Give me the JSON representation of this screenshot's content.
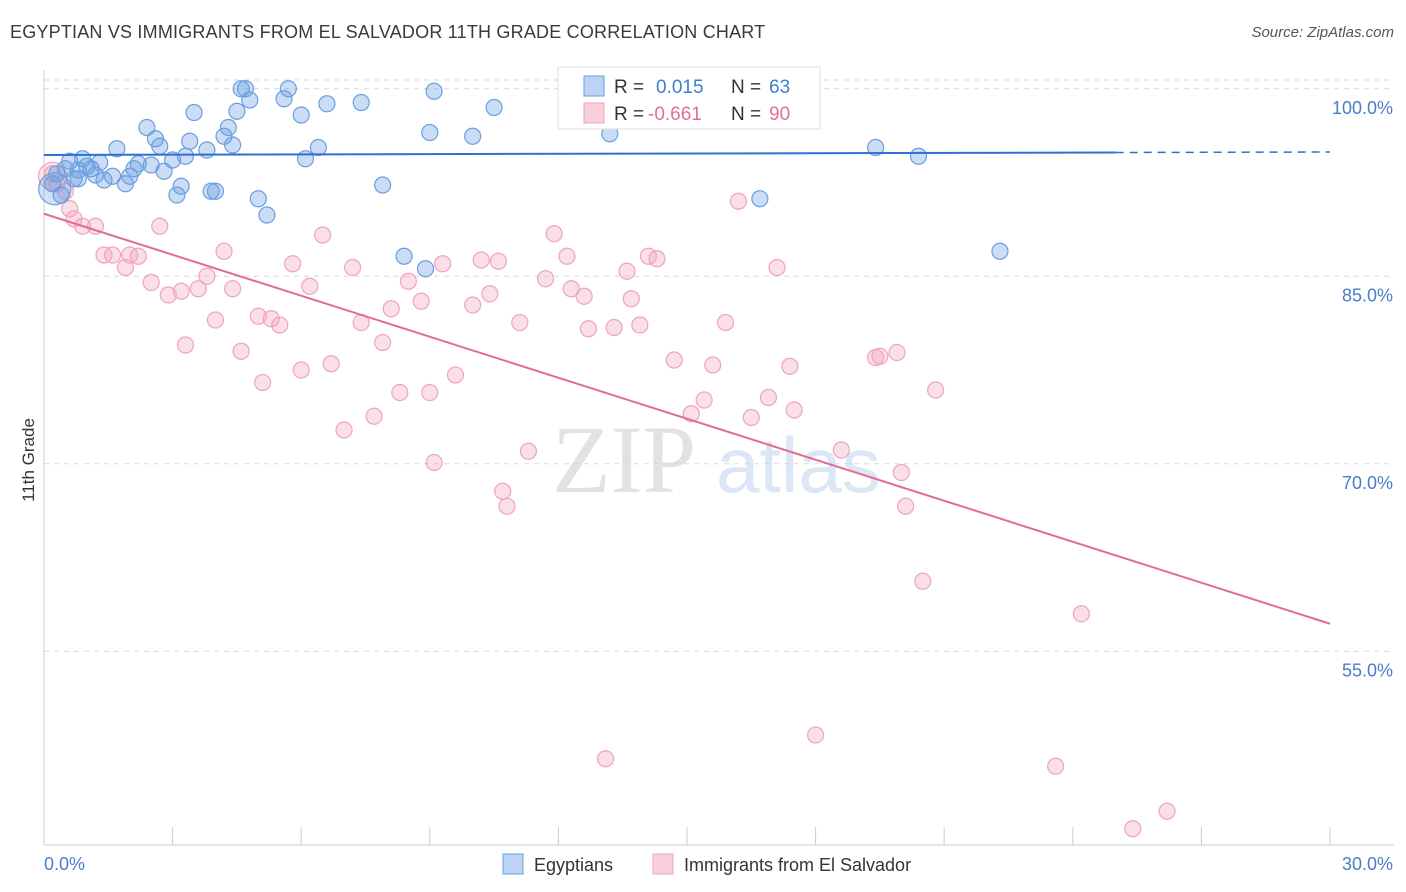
{
  "title": "EGYPTIAN VS IMMIGRANTS FROM EL SALVADOR 11TH GRADE CORRELATION CHART",
  "source": "Source: ZipAtlas.com",
  "watermark": {
    "zip": "ZIP",
    "atlas": "atlas"
  },
  "colors": {
    "blue": "#6a9fe0",
    "blue_line": "#2f6fd1",
    "pink": "#f0a3bd",
    "pink_line": "#e06c98",
    "grid": "#d8d8d8",
    "axis_label": "#4a7cc9"
  },
  "legend": {
    "r_label": "R =",
    "n_label": "N =",
    "blue": {
      "r": "0.015",
      "n": "63"
    },
    "pink": {
      "r": "-0.661",
      "n": "90"
    }
  },
  "bottom_legend": {
    "blue": "Egyptians",
    "pink": "Immigrants from El Salvador"
  },
  "chart_data": {
    "type": "scatter",
    "title": "EGYPTIAN VS IMMIGRANTS FROM EL SALVADOR 11TH GRADE CORRELATION CHART",
    "xlabel": "",
    "ylabel": "11th Grade",
    "xlim": [
      0,
      30
    ],
    "ylim": [
      39.5,
      101.5
    ],
    "x_tick_labels": [
      "0.0%",
      "30.0%"
    ],
    "y_ticks": [
      55,
      70,
      85,
      100
    ],
    "y_tick_labels": [
      "55.0%",
      "70.0%",
      "85.0%",
      "100.0%"
    ],
    "series": [
      {
        "name": "Egyptians",
        "color": "#6a9fe0",
        "trend": {
          "x": [
            0,
            25
          ],
          "y": [
            94.7,
            94.9
          ],
          "dash_to_x": 30
        },
        "points": [
          [
            0.2,
            92.4
          ],
          [
            0.3,
            93.2
          ],
          [
            0.4,
            91.5
          ],
          [
            0.5,
            93.6
          ],
          [
            0.6,
            94.2
          ],
          [
            0.7,
            92.8
          ],
          [
            0.8,
            93.5
          ],
          [
            0.9,
            94.4
          ],
          [
            1.0,
            93.8
          ],
          [
            1.1,
            93.6
          ],
          [
            1.2,
            93.1
          ],
          [
            1.3,
            94.1
          ],
          [
            1.4,
            92.7
          ],
          [
            1.6,
            93.0
          ],
          [
            1.7,
            95.2
          ],
          [
            1.9,
            92.4
          ],
          [
            2.0,
            93.0
          ],
          [
            2.1,
            93.6
          ],
          [
            2.2,
            94.0
          ],
          [
            2.4,
            96.9
          ],
          [
            2.6,
            96.0
          ],
          [
            2.7,
            95.4
          ],
          [
            2.8,
            93.4
          ],
          [
            3.0,
            94.3
          ],
          [
            3.1,
            91.5
          ],
          [
            3.2,
            92.2
          ],
          [
            3.3,
            94.6
          ],
          [
            3.4,
            95.8
          ],
          [
            3.5,
            98.1
          ],
          [
            3.8,
            95.1
          ],
          [
            3.9,
            91.8
          ],
          [
            4.0,
            91.8
          ],
          [
            4.2,
            96.2
          ],
          [
            4.3,
            96.9
          ],
          [
            4.4,
            95.5
          ],
          [
            4.5,
            98.2
          ],
          [
            4.6,
            100.0
          ],
          [
            4.7,
            100.0
          ],
          [
            4.8,
            99.1
          ],
          [
            5.0,
            91.2
          ],
          [
            5.2,
            89.9
          ],
          [
            5.6,
            99.2
          ],
          [
            5.7,
            100.0
          ],
          [
            6.0,
            97.9
          ],
          [
            6.1,
            94.4
          ],
          [
            6.4,
            95.3
          ],
          [
            6.6,
            98.8
          ],
          [
            7.4,
            98.9
          ],
          [
            7.9,
            92.3
          ],
          [
            8.4,
            86.6
          ],
          [
            8.9,
            85.6
          ],
          [
            9.0,
            96.5
          ],
          [
            9.1,
            99.8
          ],
          [
            10.0,
            96.2
          ],
          [
            10.5,
            98.5
          ],
          [
            13.2,
            96.4
          ],
          [
            16.7,
            91.2
          ],
          [
            16.9,
            100.0
          ],
          [
            19.4,
            95.3
          ],
          [
            20.4,
            94.6
          ],
          [
            22.3,
            87.0
          ],
          [
            0.8,
            92.8
          ],
          [
            2.5,
            93.9
          ]
        ]
      },
      {
        "name": "Immigrants from El Salvador",
        "color": "#f0a3bd",
        "trend": {
          "x": [
            0,
            30
          ],
          "y": [
            90.0,
            57.2
          ]
        },
        "points": [
          [
            0.2,
            93.2
          ],
          [
            0.3,
            92.4
          ],
          [
            0.5,
            91.8
          ],
          [
            0.6,
            90.4
          ],
          [
            0.7,
            89.6
          ],
          [
            0.9,
            89.0
          ],
          [
            1.2,
            89.0
          ],
          [
            1.4,
            86.7
          ],
          [
            1.6,
            86.7
          ],
          [
            1.9,
            85.7
          ],
          [
            2.0,
            86.7
          ],
          [
            2.2,
            86.6
          ],
          [
            2.5,
            84.5
          ],
          [
            2.7,
            89.0
          ],
          [
            2.9,
            83.5
          ],
          [
            3.2,
            83.8
          ],
          [
            3.3,
            79.5
          ],
          [
            3.6,
            84.0
          ],
          [
            3.8,
            85.0
          ],
          [
            4.0,
            81.5
          ],
          [
            4.2,
            87.0
          ],
          [
            4.4,
            84.0
          ],
          [
            4.6,
            79.0
          ],
          [
            5.0,
            81.8
          ],
          [
            5.1,
            76.5
          ],
          [
            5.3,
            81.6
          ],
          [
            5.5,
            81.1
          ],
          [
            5.8,
            86.0
          ],
          [
            6.0,
            77.5
          ],
          [
            6.2,
            84.2
          ],
          [
            6.5,
            88.3
          ],
          [
            6.7,
            78.0
          ],
          [
            7.0,
            72.7
          ],
          [
            7.2,
            85.7
          ],
          [
            7.4,
            81.3
          ],
          [
            7.7,
            73.8
          ],
          [
            7.9,
            79.7
          ],
          [
            8.1,
            82.4
          ],
          [
            8.3,
            75.7
          ],
          [
            8.5,
            84.6
          ],
          [
            8.8,
            83.0
          ],
          [
            9.0,
            75.7
          ],
          [
            9.1,
            70.1
          ],
          [
            9.3,
            86.0
          ],
          [
            9.6,
            77.1
          ],
          [
            10.0,
            82.7
          ],
          [
            10.2,
            86.3
          ],
          [
            10.4,
            83.6
          ],
          [
            10.6,
            86.2
          ],
          [
            10.7,
            67.8
          ],
          [
            10.8,
            66.6
          ],
          [
            11.1,
            81.3
          ],
          [
            11.3,
            71.0
          ],
          [
            11.7,
            84.8
          ],
          [
            11.9,
            88.4
          ],
          [
            12.2,
            86.6
          ],
          [
            12.3,
            84.0
          ],
          [
            12.6,
            83.4
          ],
          [
            12.7,
            80.8
          ],
          [
            13.1,
            46.4
          ],
          [
            13.3,
            80.9
          ],
          [
            13.6,
            85.4
          ],
          [
            13.7,
            83.2
          ],
          [
            13.9,
            81.1
          ],
          [
            14.1,
            86.6
          ],
          [
            14.3,
            86.4
          ],
          [
            14.7,
            78.3
          ],
          [
            15.1,
            74.0
          ],
          [
            15.4,
            75.1
          ],
          [
            15.6,
            77.9
          ],
          [
            15.9,
            81.3
          ],
          [
            16.2,
            91.0
          ],
          [
            16.5,
            73.7
          ],
          [
            16.9,
            75.3
          ],
          [
            17.1,
            85.7
          ],
          [
            17.4,
            77.8
          ],
          [
            17.5,
            74.3
          ],
          [
            18.0,
            48.3
          ],
          [
            18.6,
            71.1
          ],
          [
            19.4,
            78.5
          ],
          [
            19.5,
            78.6
          ],
          [
            19.9,
            78.9
          ],
          [
            20.0,
            69.3
          ],
          [
            20.1,
            66.6
          ],
          [
            20.5,
            60.6
          ],
          [
            20.8,
            75.9
          ],
          [
            23.6,
            45.8
          ],
          [
            24.2,
            58.0
          ],
          [
            25.4,
            40.8
          ],
          [
            26.2,
            42.2
          ]
        ]
      }
    ]
  }
}
